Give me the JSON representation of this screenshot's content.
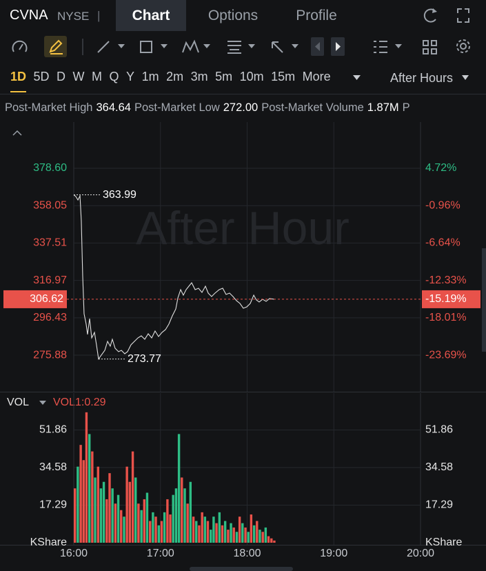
{
  "header": {
    "symbol": "CVNA",
    "exchange": "NYSE",
    "separator": "|",
    "tabs": [
      "Chart",
      "Options",
      "Profile"
    ],
    "active_tab": 0
  },
  "periods": {
    "items": [
      "1D",
      "5D",
      "D",
      "W",
      "M",
      "Q",
      "Y",
      "1m",
      "2m",
      "3m",
      "5m",
      "10m",
      "15m",
      "More"
    ],
    "active": 0
  },
  "session": "After Hours",
  "stats": [
    {
      "label": "Post-Market High",
      "value": "364.64"
    },
    {
      "label": "Post-Market Low",
      "value": "272.00"
    },
    {
      "label": "Post-Market Volume",
      "value": "1.87M"
    },
    {
      "label": "P"
    }
  ],
  "chart_data": [
    {
      "type": "line",
      "watermark": "After Hour",
      "color": "#e0e0e0",
      "up_color": "#2ebd85",
      "down_color": "#e8524a",
      "grid": true,
      "x": [
        16,
        16.024,
        16.048,
        16.072,
        16.087,
        16.103,
        16.119,
        16.143,
        16.159,
        16.183,
        16.207,
        16.239,
        16.262,
        16.286,
        16.318,
        16.358,
        16.39,
        16.421,
        16.445,
        16.477,
        16.517,
        16.549,
        16.588,
        16.62,
        16.66,
        16.7,
        16.74,
        16.779,
        16.819,
        16.859,
        16.899,
        16.938,
        16.978,
        17.018,
        17.058,
        17.097,
        17.137,
        17.177,
        17.201,
        17.233,
        17.264,
        17.296,
        17.328,
        17.36,
        17.4,
        17.439,
        17.479,
        17.519,
        17.551,
        17.59,
        17.63,
        17.678,
        17.718,
        17.757,
        17.797,
        17.837,
        17.877,
        17.917,
        17.956,
        17.996,
        18.036,
        18.076,
        18.107,
        18.139,
        18.179,
        18.219,
        18.258,
        18.314
      ],
      "values": [
        363.99,
        363.06,
        361.17,
        363.44,
        349.8,
        319.48,
        298.64,
        292.95,
        287.27,
        295.98,
        285.37,
        288.4,
        281.58,
        273.77,
        275.9,
        278.55,
        283.48,
        280.83,
        284.62,
        279.69,
        277.79,
        278.55,
        276.66,
        277.79,
        281.58,
        283.48,
        285.37,
        286.51,
        284.62,
        287.65,
        285.37,
        289.16,
        286.13,
        288.4,
        289.92,
        292.95,
        297.5,
        301.29,
        307.35,
        311.9,
        308.87,
        311.9,
        313.79,
        315.69,
        311.9,
        312.66,
        310.39,
        313.79,
        310,
        308.11,
        310,
        311.9,
        312.66,
        309.25,
        310,
        308.11,
        305.84,
        304.32,
        301.67,
        302.43,
        304.32,
        308.87,
        306.22,
        305.08,
        306.6,
        305.46,
        306.98,
        306.62
      ],
      "xlim": [
        16,
        20
      ],
      "ylim": [
        255.81,
        403.99
      ],
      "yticks": [
        {
          "value": 378.6,
          "label": "378.60"
        },
        358.05,
        337.51,
        316.97,
        296.43,
        275.88
      ],
      "y2lim": [
        -29.24,
        11.74
      ],
      "y2ticks": [
        {
          "value": 4.72,
          "label": "4.72%"
        },
        {
          "value": -0.96,
          "label": "-0.96%"
        },
        {
          "value": -6.64,
          "label": "-6.64%"
        },
        {
          "value": -12.33,
          "label": "-12.33%"
        },
        {
          "value": -18.01,
          "label": "-18.01%"
        },
        {
          "value": -23.69,
          "label": "-23.69%"
        }
      ],
      "current": {
        "value": 306.62,
        "change": {
          "value": -15.19,
          "label": "-15.19%"
        }
      },
      "high": {
        "x": 16,
        "value": 363.99
      },
      "low": {
        "x": 16.286,
        "value": 273.77
      }
    },
    {
      "type": "bar",
      "title": "VOL",
      "indicator": "VOL1:0.29",
      "grid": true,
      "x": [
        16,
        16.033,
        16.067,
        16.1,
        16.133,
        16.167,
        16.2,
        16.233,
        16.267,
        16.3,
        16.333,
        16.367,
        16.4,
        16.433,
        16.467,
        16.5,
        16.533,
        16.567,
        16.6,
        16.633,
        16.667,
        16.7,
        16.733,
        16.767,
        16.8,
        16.833,
        16.867,
        16.9,
        16.933,
        16.967,
        17,
        17.033,
        17.067,
        17.1,
        17.133,
        17.167,
        17.2,
        17.233,
        17.267,
        17.3,
        17.333,
        17.367,
        17.4,
        17.433,
        17.467,
        17.5,
        17.533,
        17.567,
        17.6,
        17.633,
        17.667,
        17.7,
        17.733,
        17.767,
        17.8,
        17.833,
        17.867,
        17.9,
        17.933,
        17.967,
        18,
        18.033,
        18.067,
        18.1,
        18.133,
        18.167,
        18.2,
        18.233,
        18.267,
        18.3
      ],
      "values": [
        25,
        35,
        45,
        38,
        60,
        50,
        42,
        30,
        35,
        25,
        28,
        20,
        32,
        25,
        18,
        22,
        15,
        12,
        35,
        28,
        42,
        30,
        18,
        15,
        20,
        23,
        10,
        14,
        12,
        8,
        10,
        14,
        20,
        13,
        22,
        25,
        50,
        30,
        25,
        18,
        28,
        12,
        10,
        8,
        14,
        12,
        10,
        6,
        12,
        9,
        14,
        8,
        10,
        6,
        9,
        7,
        5,
        12,
        9,
        7,
        5,
        13,
        8,
        10,
        6,
        5,
        7,
        3,
        2,
        1
      ],
      "colors": [
        "#e8524a",
        "#2ebd85",
        "#e8524a",
        "#e8524a",
        "#e8524a",
        "#2ebd85",
        "#e8524a",
        "#2ebd85",
        "#e8524a",
        "#2ebd85",
        "#2ebd85",
        "#e8524a",
        "#e8524a",
        "#2ebd85",
        "#e8524a",
        "#2ebd85",
        "#e8524a",
        "#2ebd85",
        "#e8524a",
        "#e8524a",
        "#e8524a",
        "#2ebd85",
        "#e8524a",
        "#2ebd85",
        "#e8524a",
        "#2ebd85",
        "#e8524a",
        "#2ebd85",
        "#e8524a",
        "#2ebd85",
        "#e8524a",
        "#2ebd85",
        "#e8524a",
        "#e8524a",
        "#2ebd85",
        "#2ebd85",
        "#2ebd85",
        "#e8524a",
        "#2ebd85",
        "#e8524a",
        "#2ebd85",
        "#e8524a",
        "#2ebd85",
        "#e8524a",
        "#e8524a",
        "#2ebd85",
        "#e8524a",
        "#2ebd85",
        "#2ebd85",
        "#e8524a",
        "#2ebd85",
        "#e8524a",
        "#2ebd85",
        "#e8524a",
        "#2ebd85",
        "#e8524a",
        "#2ebd85",
        "#e8524a",
        "#2ebd85",
        "#e8524a",
        "#2ebd85",
        "#e8524a",
        "#2ebd85",
        "#e8524a",
        "#2ebd85",
        "#e8524a",
        "#2ebd85",
        "#e8524a",
        "#e8524a",
        "#e8524a"
      ],
      "xlim": [
        16,
        20
      ],
      "ylim": [
        0,
        68.84
      ],
      "yticks": [
        {
          "value": 0,
          "label": "KShare"
        },
        17.29,
        34.58,
        51.86
      ],
      "xticks": [
        {
          "value": 16,
          "label": "16:00"
        },
        {
          "value": 17,
          "label": "17:00"
        },
        {
          "value": 18,
          "label": "18:00"
        },
        {
          "value": 19,
          "label": "19:00"
        },
        {
          "value": 20,
          "label": "20:00"
        }
      ]
    }
  ]
}
